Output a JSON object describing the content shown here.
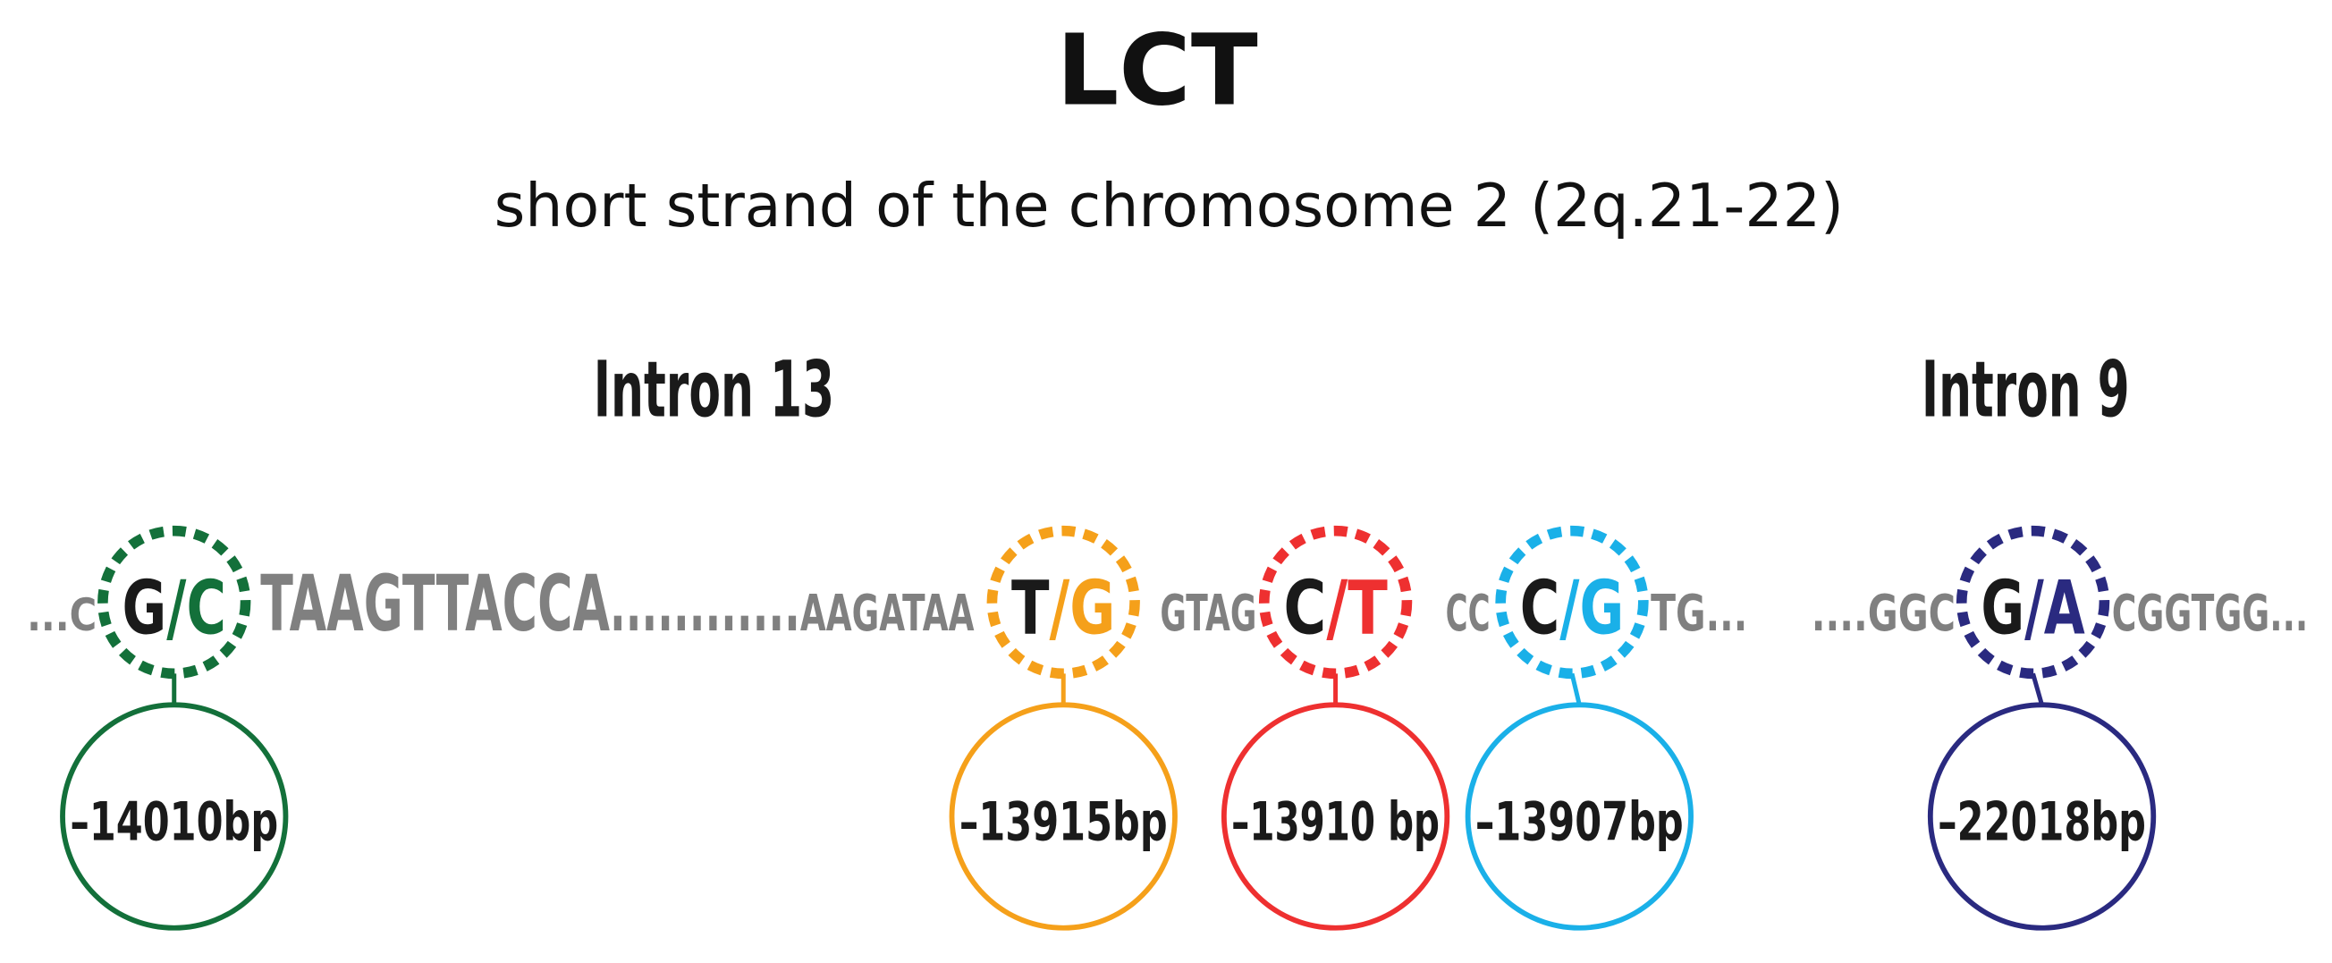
{
  "title": "LCT",
  "subtitle": "short strand of the chromosome 2 (2q.21-22)",
  "regions": [
    {
      "label": "Intron 13"
    },
    {
      "label": "Intron 9"
    }
  ],
  "allele_separator": "/",
  "sequence": [
    "...C",
    "TAAGTTACCA",
    "............",
    "AAGATAA",
    "GTAG",
    "CC",
    "TG...",
    "....GGC",
    "CGGTGG..."
  ],
  "snps": [
    {
      "ref": "G",
      "alt": "C",
      "position": "–14010bp",
      "color": "#13703a"
    },
    {
      "ref": "T",
      "alt": "G",
      "position": "–13915bp",
      "color": "#f5a01a"
    },
    {
      "ref": "C",
      "alt": "T",
      "position": "–13910 bp",
      "color": "#ee3030"
    },
    {
      "ref": "C",
      "alt": "G",
      "position": "–13907bp",
      "color": "#1ab0e8"
    },
    {
      "ref": "G",
      "alt": "A",
      "position": "–22018bp",
      "color": "#2a2a80"
    }
  ]
}
